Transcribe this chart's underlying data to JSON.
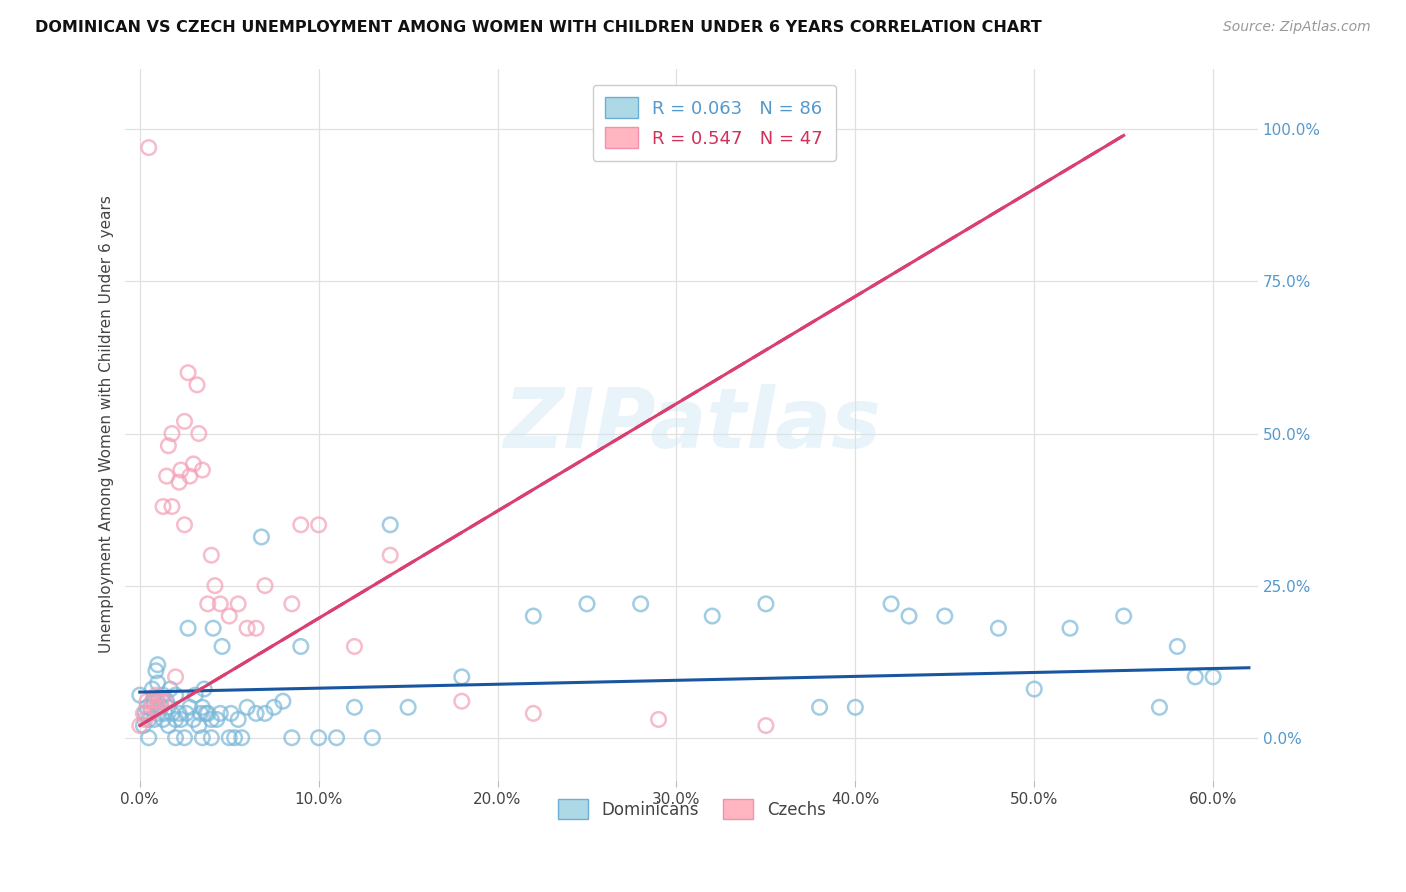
{
  "title": "DOMINICAN VS CZECH UNEMPLOYMENT AMONG WOMEN WITH CHILDREN UNDER 6 YEARS CORRELATION CHART",
  "source": "Source: ZipAtlas.com",
  "ylabel": "Unemployment Among Women with Children Under 6 years",
  "xlabel_ticks": [
    "0.0%",
    "10.0%",
    "20.0%",
    "30.0%",
    "40.0%",
    "50.0%",
    "60.0%"
  ],
  "xlabel_vals": [
    0.0,
    0.1,
    0.2,
    0.3,
    0.4,
    0.5,
    0.6
  ],
  "ylabel_ticks_right": [
    "0.0%",
    "25.0%",
    "50.0%",
    "75.0%",
    "100.0%"
  ],
  "ylabel_vals": [
    0.0,
    0.25,
    0.5,
    0.75,
    1.0
  ],
  "xlim": [
    -0.008,
    0.625
  ],
  "ylim": [
    -0.07,
    1.1
  ],
  "dominican_color": "#7ab8d9",
  "czech_color": "#f4a0b5",
  "dominican_line_color": "#1a56a0",
  "czech_line_color": "#d94070",
  "watermark_text": "ZIPatlas",
  "legend_R1": "R = 0.063",
  "legend_N1": "N = 86",
  "legend_R2": "R = 0.547",
  "legend_N2": "N = 47",
  "dom_x": [
    0.0,
    0.002,
    0.003,
    0.004,
    0.005,
    0.005,
    0.006,
    0.007,
    0.008,
    0.008,
    0.009,
    0.01,
    0.01,
    0.01,
    0.01,
    0.012,
    0.013,
    0.013,
    0.014,
    0.015,
    0.016,
    0.016,
    0.017,
    0.018,
    0.02,
    0.02,
    0.02,
    0.022,
    0.023,
    0.025,
    0.026,
    0.027,
    0.028,
    0.03,
    0.031,
    0.033,
    0.034,
    0.035,
    0.035,
    0.036,
    0.037,
    0.038,
    0.04,
    0.04,
    0.041,
    0.043,
    0.045,
    0.046,
    0.05,
    0.051,
    0.053,
    0.055,
    0.057,
    0.06,
    0.065,
    0.068,
    0.07,
    0.075,
    0.08,
    0.085,
    0.09,
    0.1,
    0.11,
    0.12,
    0.13,
    0.14,
    0.15,
    0.18,
    0.22,
    0.25,
    0.28,
    0.32,
    0.38,
    0.42,
    0.45,
    0.5,
    0.52,
    0.55,
    0.57,
    0.58,
    0.59,
    0.6,
    0.48,
    0.43,
    0.4,
    0.35
  ],
  "dom_y": [
    0.07,
    0.02,
    0.04,
    0.05,
    0.0,
    0.03,
    0.05,
    0.08,
    0.03,
    0.06,
    0.11,
    0.04,
    0.06,
    0.09,
    0.12,
    0.05,
    0.03,
    0.07,
    0.04,
    0.06,
    0.02,
    0.05,
    0.08,
    0.04,
    0.0,
    0.03,
    0.07,
    0.04,
    0.03,
    0.0,
    0.04,
    0.18,
    0.05,
    0.03,
    0.07,
    0.02,
    0.04,
    0.0,
    0.05,
    0.08,
    0.04,
    0.04,
    0.0,
    0.03,
    0.18,
    0.03,
    0.04,
    0.15,
    0.0,
    0.04,
    0.0,
    0.03,
    0.0,
    0.05,
    0.04,
    0.33,
    0.04,
    0.05,
    0.06,
    0.0,
    0.15,
    0.0,
    0.0,
    0.05,
    0.0,
    0.35,
    0.05,
    0.1,
    0.2,
    0.22,
    0.22,
    0.2,
    0.05,
    0.22,
    0.2,
    0.08,
    0.18,
    0.2,
    0.05,
    0.15,
    0.1,
    0.1,
    0.18,
    0.2,
    0.05,
    0.22
  ],
  "cze_x": [
    0.0,
    0.002,
    0.003,
    0.004,
    0.005,
    0.006,
    0.007,
    0.008,
    0.009,
    0.01,
    0.01,
    0.012,
    0.013,
    0.014,
    0.015,
    0.016,
    0.018,
    0.018,
    0.02,
    0.022,
    0.023,
    0.025,
    0.025,
    0.027,
    0.028,
    0.03,
    0.032,
    0.033,
    0.035,
    0.038,
    0.04,
    0.042,
    0.045,
    0.05,
    0.055,
    0.06,
    0.065,
    0.07,
    0.085,
    0.09,
    0.1,
    0.12,
    0.14,
    0.18,
    0.22,
    0.29,
    0.35
  ],
  "cze_y": [
    0.02,
    0.04,
    0.03,
    0.06,
    0.97,
    0.04,
    0.06,
    0.05,
    0.07,
    0.05,
    0.06,
    0.06,
    0.38,
    0.06,
    0.43,
    0.48,
    0.5,
    0.38,
    0.1,
    0.42,
    0.44,
    0.52,
    0.35,
    0.6,
    0.43,
    0.45,
    0.58,
    0.5,
    0.44,
    0.22,
    0.3,
    0.25,
    0.22,
    0.2,
    0.22,
    0.18,
    0.18,
    0.25,
    0.22,
    0.35,
    0.35,
    0.15,
    0.3,
    0.06,
    0.04,
    0.03,
    0.02
  ],
  "cze_line_x0": 0.0,
  "cze_line_y0": 0.02,
  "cze_line_x1": 0.55,
  "cze_line_y1": 0.99,
  "dom_line_x0": 0.0,
  "dom_line_y0": 0.075,
  "dom_line_x1": 0.62,
  "dom_line_y1": 0.115
}
